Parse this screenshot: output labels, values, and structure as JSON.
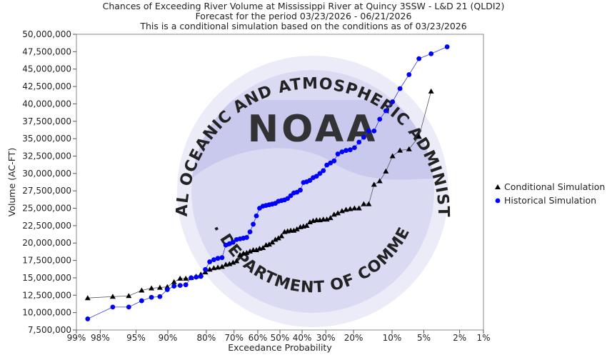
{
  "chart_data": {
    "type": "line",
    "title": [
      "Chances of Exceeding River Volume at Mississippi River at Quincy 3SSW - L&D 21 (QLDI2)",
      "Forecast for the period 03/23/2026 - 06/21/2026",
      "This is a conditional simulation based on the conditions as of 03/23/2026"
    ],
    "xlabel": "Exceedance Probability",
    "ylabel": "Volume (AC-FT)",
    "x_scale": "normal-probability",
    "x_ticks": [
      99,
      98,
      95,
      90,
      80,
      70,
      60,
      50,
      40,
      30,
      20,
      10,
      5,
      2,
      1
    ],
    "x_tick_labels": [
      "99%",
      "98%",
      "95%",
      "90%",
      "80%",
      "70%",
      "60%",
      "50%",
      "40%",
      "30%",
      "20%",
      "10%",
      "5%",
      "2%",
      "1%"
    ],
    "ylim": [
      7500000,
      50000000
    ],
    "y_ticks": [
      7500000,
      10000000,
      12500000,
      15000000,
      17500000,
      20000000,
      22500000,
      25000000,
      27500000,
      30000000,
      32500000,
      35000000,
      37500000,
      40000000,
      42500000,
      45000000,
      47500000,
      50000000
    ],
    "y_tick_labels": [
      "7,500,000",
      "10,000,000",
      "12,500,000",
      "15,000,000",
      "17,500,000",
      "20,000,000",
      "22,500,000",
      "25,000,000",
      "27,500,000",
      "30,000,000",
      "32,500,000",
      "35,000,000",
      "37,500,000",
      "40,000,000",
      "42,500,000",
      "45,000,000",
      "47,500,000",
      "50,000,000"
    ],
    "grid": false,
    "legend_position": "right",
    "series": [
      {
        "name": "Conditional Simulation",
        "marker": "triangle",
        "color": "#000000",
        "points": [
          [
            98.6,
            12100000
          ],
          [
            97.2,
            12300000
          ],
          [
            95.8,
            12400000
          ],
          [
            94.3,
            13200000
          ],
          [
            92.9,
            13500000
          ],
          [
            91.5,
            13600000
          ],
          [
            90.1,
            13700000
          ],
          [
            88.7,
            14400000
          ],
          [
            87.3,
            14900000
          ],
          [
            85.9,
            14900000
          ],
          [
            84.5,
            15000000
          ],
          [
            83.1,
            15200000
          ],
          [
            81.7,
            15500000
          ],
          [
            80.3,
            15800000
          ],
          [
            78.9,
            16200000
          ],
          [
            77.5,
            16400000
          ],
          [
            76.1,
            16500000
          ],
          [
            74.6,
            16600000
          ],
          [
            73.2,
            16900000
          ],
          [
            71.8,
            17000000
          ],
          [
            70.4,
            17200000
          ],
          [
            69.0,
            17400000
          ],
          [
            67.6,
            18300000
          ],
          [
            66.2,
            18500000
          ],
          [
            64.8,
            18600000
          ],
          [
            63.4,
            18800000
          ],
          [
            62.0,
            19000000
          ],
          [
            60.6,
            19000000
          ],
          [
            59.2,
            19200000
          ],
          [
            57.7,
            19300000
          ],
          [
            56.3,
            19700000
          ],
          [
            54.9,
            19800000
          ],
          [
            53.5,
            20100000
          ],
          [
            52.1,
            20500000
          ],
          [
            50.7,
            20700000
          ],
          [
            49.3,
            21000000
          ],
          [
            47.9,
            21600000
          ],
          [
            46.5,
            21700000
          ],
          [
            45.1,
            21800000
          ],
          [
            43.7,
            21800000
          ],
          [
            42.3,
            22000000
          ],
          [
            40.8,
            22300000
          ],
          [
            39.4,
            22400000
          ],
          [
            38.0,
            22500000
          ],
          [
            36.6,
            23000000
          ],
          [
            35.2,
            23200000
          ],
          [
            33.8,
            23300000
          ],
          [
            32.4,
            23300000
          ],
          [
            31.0,
            23400000
          ],
          [
            29.6,
            23400000
          ],
          [
            28.2,
            23600000
          ],
          [
            26.8,
            24100000
          ],
          [
            25.4,
            24300000
          ],
          [
            23.9,
            24600000
          ],
          [
            22.5,
            24800000
          ],
          [
            21.1,
            24900000
          ],
          [
            19.7,
            25000000
          ],
          [
            18.3,
            25000000
          ],
          [
            16.9,
            25600000
          ],
          [
            15.5,
            25600000
          ],
          [
            14.1,
            28400000
          ],
          [
            12.7,
            28900000
          ],
          [
            11.3,
            30300000
          ],
          [
            9.9,
            32500000
          ],
          [
            8.5,
            33300000
          ],
          [
            7.0,
            33500000
          ],
          [
            5.6,
            35300000
          ],
          [
            4.2,
            41800000
          ]
        ]
      },
      {
        "name": "Historical Simulation",
        "marker": "circle",
        "color": "#0000ff",
        "points": [
          [
            98.6,
            9100000
          ],
          [
            97.2,
            10800000
          ],
          [
            95.8,
            10800000
          ],
          [
            94.3,
            11700000
          ],
          [
            92.9,
            12200000
          ],
          [
            91.5,
            12300000
          ],
          [
            90.1,
            13300000
          ],
          [
            88.7,
            13800000
          ],
          [
            87.3,
            13900000
          ],
          [
            85.9,
            14000000
          ],
          [
            84.5,
            15000000
          ],
          [
            83.1,
            15100000
          ],
          [
            81.7,
            15200000
          ],
          [
            80.3,
            16200000
          ],
          [
            78.9,
            17300000
          ],
          [
            77.5,
            17600000
          ],
          [
            76.1,
            17800000
          ],
          [
            74.6,
            17900000
          ],
          [
            73.2,
            19700000
          ],
          [
            71.8,
            19900000
          ],
          [
            70.4,
            20100000
          ],
          [
            69.0,
            20500000
          ],
          [
            67.6,
            20600000
          ],
          [
            66.2,
            20700000
          ],
          [
            64.8,
            20800000
          ],
          [
            63.4,
            21600000
          ],
          [
            62.0,
            22700000
          ],
          [
            60.6,
            23900000
          ],
          [
            59.2,
            25000000
          ],
          [
            57.7,
            25300000
          ],
          [
            56.3,
            25400000
          ],
          [
            54.9,
            25500000
          ],
          [
            53.5,
            25600000
          ],
          [
            52.1,
            25700000
          ],
          [
            50.7,
            26000000
          ],
          [
            49.3,
            26100000
          ],
          [
            47.9,
            26200000
          ],
          [
            46.5,
            26400000
          ],
          [
            45.1,
            26800000
          ],
          [
            43.7,
            27200000
          ],
          [
            42.3,
            27300000
          ],
          [
            40.8,
            27600000
          ],
          [
            39.4,
            28700000
          ],
          [
            38.0,
            28800000
          ],
          [
            36.6,
            29000000
          ],
          [
            35.2,
            29400000
          ],
          [
            33.8,
            29600000
          ],
          [
            32.4,
            30000000
          ],
          [
            31.0,
            30400000
          ],
          [
            29.6,
            31200000
          ],
          [
            28.2,
            31500000
          ],
          [
            26.8,
            31800000
          ],
          [
            25.4,
            32800000
          ],
          [
            23.9,
            33100000
          ],
          [
            22.5,
            33300000
          ],
          [
            21.1,
            33400000
          ],
          [
            19.7,
            33700000
          ],
          [
            18.3,
            34500000
          ],
          [
            16.9,
            35200000
          ],
          [
            15.5,
            36100000
          ],
          [
            14.1,
            36100000
          ],
          [
            12.7,
            37800000
          ],
          [
            11.3,
            39000000
          ],
          [
            9.9,
            40300000
          ],
          [
            8.5,
            42200000
          ],
          [
            7.0,
            44200000
          ],
          [
            5.6,
            46500000
          ],
          [
            4.2,
            47200000
          ],
          [
            2.8,
            48200000
          ]
        ]
      }
    ]
  },
  "watermark": {
    "logo_text": "NOAA",
    "arc_top": "NATIONAL OCEANIC AND ATMOSPHERIC ADMINISTRATION",
    "arc_bottom": "U.S. DEPARTMENT OF COMMERCE",
    "colors": {
      "outer": "#e8e8f6",
      "swoosh": "#c9c9ee",
      "text": "#cfcfe8"
    }
  }
}
